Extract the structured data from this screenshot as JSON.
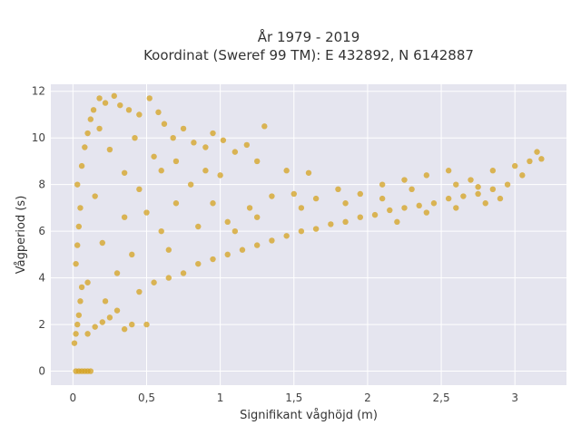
{
  "chart_data": {
    "type": "scatter",
    "title": "År 1979 - 2019",
    "subtitle": "Koordinat (Sweref 99 TM): E 432892, N 6142887",
    "xlabel": "Signifikant våghöjd (m)",
    "ylabel": "Vågperiod (s)",
    "xlim": [
      -0.15,
      3.35
    ],
    "ylim": [
      -0.6,
      12.3
    ],
    "x_ticks": [
      0,
      0.5,
      1,
      1.5,
      2,
      2.5,
      3
    ],
    "x_tick_labels": [
      "0",
      "0,5",
      "1",
      "1,5",
      "2",
      "2,5",
      "3"
    ],
    "y_ticks": [
      0,
      2,
      4,
      6,
      8,
      10,
      12
    ],
    "y_tick_labels": [
      "0",
      "2",
      "4",
      "6",
      "8",
      "10",
      "12"
    ],
    "grid": true,
    "marker_color": "#D4A21F",
    "background_color": "#E5E5EF",
    "points": [
      [
        0.02,
        0.0
      ],
      [
        0.04,
        0.0
      ],
      [
        0.06,
        0.0
      ],
      [
        0.08,
        0.0
      ],
      [
        0.1,
        0.0
      ],
      [
        0.12,
        0.0
      ],
      [
        0.01,
        1.2
      ],
      [
        0.02,
        1.6
      ],
      [
        0.03,
        2.0
      ],
      [
        0.04,
        2.4
      ],
      [
        0.05,
        3.0
      ],
      [
        0.06,
        3.6
      ],
      [
        0.02,
        4.6
      ],
      [
        0.03,
        5.4
      ],
      [
        0.04,
        6.2
      ],
      [
        0.05,
        7.0
      ],
      [
        0.03,
        8.0
      ],
      [
        0.06,
        8.8
      ],
      [
        0.08,
        9.6
      ],
      [
        0.1,
        10.2
      ],
      [
        0.12,
        10.8
      ],
      [
        0.14,
        11.2
      ],
      [
        0.18,
        11.7
      ],
      [
        0.22,
        11.5
      ],
      [
        0.28,
        11.8
      ],
      [
        0.32,
        11.4
      ],
      [
        0.38,
        11.2
      ],
      [
        0.45,
        11.0
      ],
      [
        0.52,
        11.7
      ],
      [
        0.58,
        11.1
      ],
      [
        0.62,
        10.6
      ],
      [
        0.68,
        10.0
      ],
      [
        0.75,
        10.4
      ],
      [
        0.82,
        9.8
      ],
      [
        0.9,
        9.6
      ],
      [
        0.95,
        10.2
      ],
      [
        1.02,
        9.9
      ],
      [
        1.1,
        9.4
      ],
      [
        1.18,
        9.7
      ],
      [
        1.25,
        9.0
      ],
      [
        1.3,
        10.5
      ],
      [
        1.45,
        8.6
      ],
      [
        1.6,
        8.5
      ],
      [
        0.1,
        1.6
      ],
      [
        0.15,
        1.9
      ],
      [
        0.2,
        2.1
      ],
      [
        0.25,
        2.3
      ],
      [
        0.3,
        2.6
      ],
      [
        0.35,
        1.8
      ],
      [
        0.4,
        2.0
      ],
      [
        0.5,
        2.0
      ],
      [
        0.45,
        3.4
      ],
      [
        0.55,
        3.8
      ],
      [
        0.65,
        4.0
      ],
      [
        0.75,
        4.2
      ],
      [
        0.85,
        4.6
      ],
      [
        0.95,
        4.8
      ],
      [
        1.05,
        5.0
      ],
      [
        1.15,
        5.2
      ],
      [
        1.25,
        5.4
      ],
      [
        1.35,
        5.6
      ],
      [
        1.45,
        5.8
      ],
      [
        1.55,
        6.0
      ],
      [
        1.65,
        6.1
      ],
      [
        1.75,
        6.3
      ],
      [
        1.85,
        6.4
      ],
      [
        1.95,
        6.6
      ],
      [
        2.05,
        6.7
      ],
      [
        2.15,
        6.9
      ],
      [
        2.25,
        7.0
      ],
      [
        2.35,
        7.1
      ],
      [
        2.45,
        7.2
      ],
      [
        2.55,
        7.4
      ],
      [
        2.65,
        7.5
      ],
      [
        2.75,
        7.6
      ],
      [
        2.85,
        7.8
      ],
      [
        2.95,
        8.0
      ],
      [
        3.05,
        8.4
      ],
      [
        3.1,
        9.0
      ],
      [
        3.15,
        9.4
      ],
      [
        3.18,
        9.1
      ],
      [
        1.1,
        6.0
      ],
      [
        1.2,
        7.0
      ],
      [
        1.35,
        7.5
      ],
      [
        1.5,
        7.6
      ],
      [
        1.65,
        7.4
      ],
      [
        1.8,
        7.8
      ],
      [
        1.95,
        7.6
      ],
      [
        2.1,
        8.0
      ],
      [
        2.25,
        8.2
      ],
      [
        2.4,
        8.4
      ],
      [
        2.55,
        8.6
      ],
      [
        2.7,
        8.2
      ],
      [
        2.85,
        8.6
      ],
      [
        3.0,
        8.8
      ],
      [
        2.2,
        6.4
      ],
      [
        2.4,
        6.8
      ],
      [
        2.6,
        7.0
      ],
      [
        2.8,
        7.2
      ],
      [
        2.9,
        7.4
      ],
      [
        0.6,
        6.0
      ],
      [
        0.7,
        7.2
      ],
      [
        0.8,
        8.0
      ],
      [
        0.9,
        8.6
      ],
      [
        1.0,
        8.4
      ],
      [
        0.4,
        5.0
      ],
      [
        0.5,
        6.8
      ],
      [
        0.35,
        8.5
      ],
      [
        0.25,
        9.5
      ],
      [
        0.15,
        7.5
      ],
      [
        0.2,
        5.5
      ],
      [
        0.1,
        3.8
      ],
      [
        0.3,
        4.2
      ],
      [
        0.55,
        9.2
      ],
      [
        0.7,
        9.0
      ],
      [
        0.95,
        7.2
      ],
      [
        1.25,
        6.6
      ],
      [
        1.55,
        7.0
      ],
      [
        1.85,
        7.2
      ],
      [
        2.1,
        7.4
      ],
      [
        2.3,
        7.8
      ],
      [
        2.6,
        8.0
      ],
      [
        2.75,
        7.9
      ],
      [
        0.65,
        5.2
      ],
      [
        0.85,
        6.2
      ],
      [
        1.05,
        6.4
      ],
      [
        0.45,
        7.8
      ],
      [
        0.35,
        6.6
      ],
      [
        0.22,
        3.0
      ],
      [
        0.18,
        10.4
      ],
      [
        0.42,
        10.0
      ],
      [
        0.6,
        8.6
      ]
    ]
  }
}
